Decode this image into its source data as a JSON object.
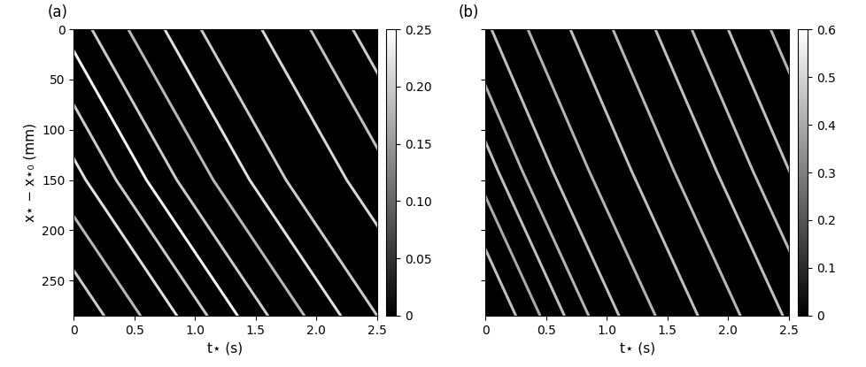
{
  "chart_data": [
    {
      "type": "line",
      "label": "(a)",
      "x_label": "t⋆ (s)",
      "y_label": "x⋆ − x⋆₀ (mm)",
      "xlim": [
        0,
        2.5
      ],
      "xticks": [
        0,
        0.5,
        1.0,
        1.5,
        2.0,
        2.5
      ],
      "ylim": [
        285,
        0
      ],
      "yticks": [
        0,
        50,
        100,
        150,
        200,
        250
      ],
      "clim": [
        0,
        0.25
      ],
      "cticks": [
        0,
        0.05,
        {
          "value": 0.1,
          "label": "0.10"
        },
        0.15,
        {
          "value": 0.2,
          "label": "0.20"
        },
        0.25
      ],
      "series": [
        {
          "x": [
            -1.2,
            -0.5,
            0.25
          ],
          "values": [
            0,
            150,
            285
          ],
          "level": 0.2
        },
        {
          "x": [
            -0.9,
            -0.2,
            0.55
          ],
          "values": [
            0,
            150,
            285
          ],
          "level": 0.18
        },
        {
          "x": [
            -0.6,
            0.1,
            0.85
          ],
          "values": [
            0,
            150,
            285
          ],
          "level": 0.22
        },
        {
          "x": [
            -0.35,
            0.35,
            1.1
          ],
          "values": [
            0,
            150,
            285
          ],
          "level": 0.2
        },
        {
          "x": [
            -0.1,
            0.6,
            1.35
          ],
          "values": [
            0,
            150,
            285
          ],
          "level": 0.24
        },
        {
          "x": [
            0.15,
            0.85,
            1.6
          ],
          "values": [
            0,
            150,
            285
          ],
          "level": 0.2
        },
        {
          "x": [
            0.45,
            1.15,
            1.9
          ],
          "values": [
            0,
            150,
            285
          ],
          "level": 0.18
        },
        {
          "x": [
            0.75,
            1.45,
            2.2
          ],
          "values": [
            0,
            150,
            285
          ],
          "level": 0.22
        },
        {
          "x": [
            1.05,
            1.75,
            2.5
          ],
          "values": [
            0,
            150,
            285
          ],
          "level": 0.2
        },
        {
          "x": [
            1.55,
            2.25,
            3.0
          ],
          "values": [
            0,
            150,
            285
          ],
          "level": 0.21
        },
        {
          "x": [
            1.95,
            2.65,
            3.4
          ],
          "values": [
            0,
            150,
            285
          ],
          "level": 0.19
        },
        {
          "x": [
            2.3,
            3.0,
            3.75
          ],
          "values": [
            0,
            150,
            285
          ],
          "level": 0.2
        }
      ]
    },
    {
      "type": "line",
      "label": "(b)",
      "x_label": "t⋆ (s)",
      "tick_labels": "x",
      "xlim": [
        0,
        2.5
      ],
      "xticks": [
        0,
        0.5,
        1.0,
        1.5,
        2.0,
        2.5
      ],
      "ylim": [
        285,
        0
      ],
      "yticks": [
        0,
        50,
        100,
        150,
        200,
        250
      ],
      "clim": [
        0,
        0.6
      ],
      "cticks": [
        0,
        0.1,
        0.2,
        0.3,
        0.4,
        0.5,
        0.6
      ],
      "series": [
        {
          "x": [
            -0.8,
            -0.3,
            0.25
          ],
          "values": [
            0,
            140,
            285
          ],
          "level": 0.45
        },
        {
          "x": [
            -0.6,
            -0.1,
            0.45
          ],
          "values": [
            0,
            140,
            285
          ],
          "level": 0.4
        },
        {
          "x": [
            -0.4,
            0.1,
            0.65
          ],
          "values": [
            0,
            140,
            285
          ],
          "level": 0.45
        },
        {
          "x": [
            -0.2,
            0.3,
            0.85
          ],
          "values": [
            0,
            140,
            285
          ],
          "level": 0.42
        },
        {
          "x": [
            0.05,
            0.55,
            1.1
          ],
          "values": [
            0,
            140,
            285
          ],
          "level": 0.45
        },
        {
          "x": [
            0.35,
            0.85,
            1.4
          ],
          "values": [
            0,
            140,
            285
          ],
          "level": 0.42
        },
        {
          "x": [
            0.7,
            1.2,
            1.75
          ],
          "values": [
            0,
            140,
            285
          ],
          "level": 0.45
        },
        {
          "x": [
            1.05,
            1.55,
            2.1
          ],
          "values": [
            0,
            140,
            285
          ],
          "level": 0.43
        },
        {
          "x": [
            1.4,
            1.9,
            2.45
          ],
          "values": [
            0,
            140,
            285
          ],
          "level": 0.45
        },
        {
          "x": [
            1.7,
            2.2,
            2.75
          ],
          "values": [
            0,
            140,
            285
          ],
          "level": 0.44
        },
        {
          "x": [
            2.0,
            2.5,
            3.05
          ],
          "values": [
            0,
            140,
            285
          ],
          "level": 0.45
        },
        {
          "x": [
            2.35,
            2.85,
            3.4
          ],
          "values": [
            0,
            140,
            285
          ],
          "level": 0.43
        }
      ]
    }
  ]
}
